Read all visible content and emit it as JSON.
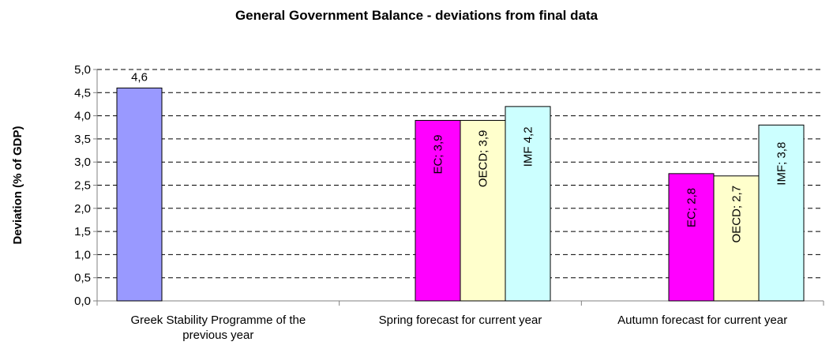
{
  "chart_data": {
    "type": "bar",
    "title": "General Government Balance - deviations from final data",
    "xlabel": "",
    "ylabel": "Deviation (% of GDP)",
    "ylim": [
      0,
      5
    ],
    "ytick_labels": [
      "0,0",
      "0,5",
      "1,0",
      "1,5",
      "2,0",
      "2,5",
      "3,0",
      "3,5",
      "4,0",
      "4,5",
      "5,0"
    ],
    "grid": true,
    "legend": "none",
    "categories": [
      "Greek Stability Programme of the previous year",
      "Spring forecast for current year",
      "Autumn forecast for current year"
    ],
    "bars": [
      {
        "category": 0,
        "value": 4.6,
        "label": "4,6",
        "label_orientation": "horizontal",
        "color": "#9999ff"
      },
      {
        "category": 1,
        "value": 3.9,
        "label": "EC; 3,9",
        "label_orientation": "vertical",
        "color": "#ff00ff"
      },
      {
        "category": 1,
        "value": 3.9,
        "label": "OECD; 3,9",
        "label_orientation": "vertical",
        "color": "#ffffcc"
      },
      {
        "category": 1,
        "value": 4.2,
        "label": "IMF  4,2",
        "label_orientation": "vertical",
        "color": "#ccffff"
      },
      {
        "category": 2,
        "value": 2.75,
        "label": "EC; 2,8",
        "label_orientation": "vertical",
        "color": "#ff00ff"
      },
      {
        "category": 2,
        "value": 2.7,
        "label": "OECD; 2,7",
        "label_orientation": "vertical",
        "color": "#ffffcc"
      },
      {
        "category": 2,
        "value": 3.8,
        "label": "IMF; 3,8",
        "label_orientation": "vertical",
        "color": "#ccffff"
      }
    ]
  }
}
